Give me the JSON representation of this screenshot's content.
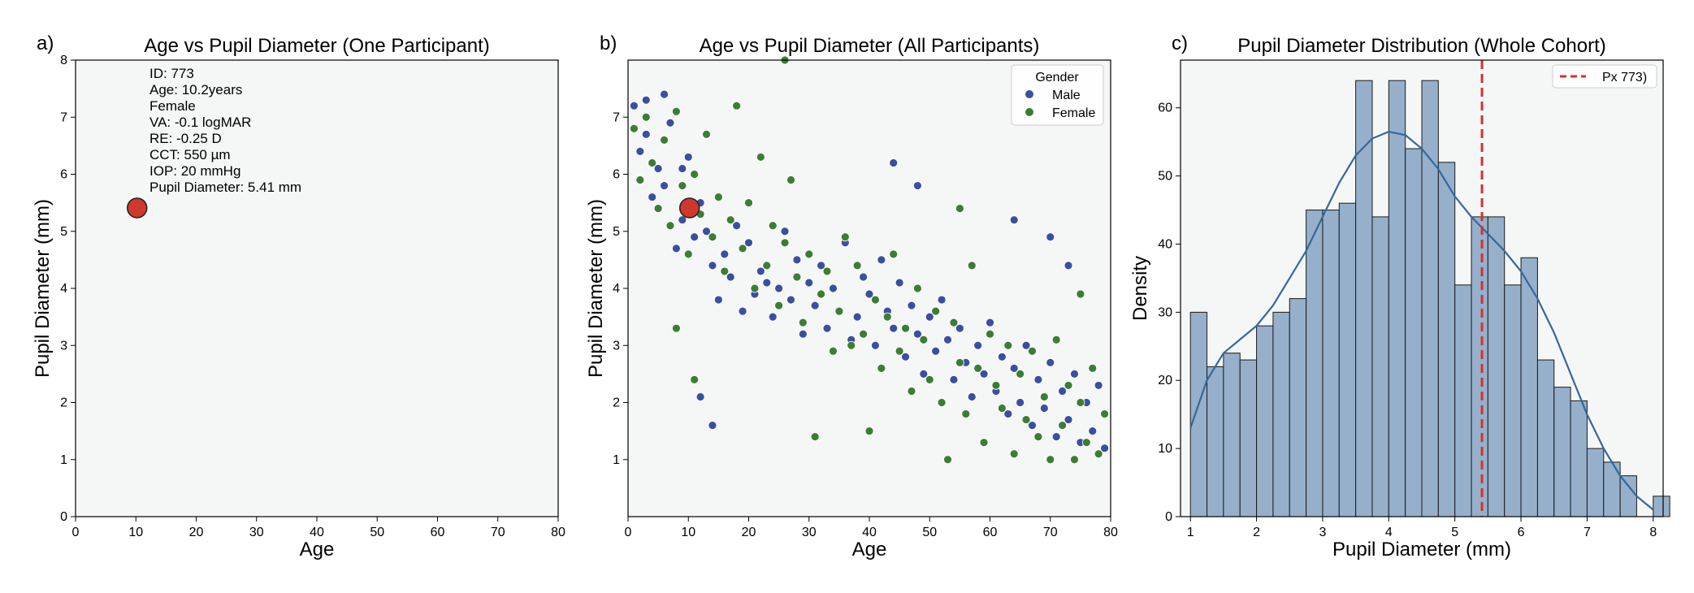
{
  "chart_data": [
    {
      "panel": "a)",
      "type": "scatter",
      "title": "Age vs Pupil Diameter (One Participant)",
      "xlabel": "Age",
      "ylabel": "Pupil Diameter (mm)",
      "xlim": [
        0,
        80
      ],
      "ylim": [
        0,
        8
      ],
      "xticks": [
        "0",
        "10",
        "20",
        "30",
        "40",
        "50",
        "60",
        "70",
        "80"
      ],
      "yticks": [
        "0",
        "1",
        "2",
        "3",
        "4",
        "5",
        "6",
        "7",
        "8"
      ],
      "points": [
        {
          "x": 10.2,
          "y": 5.41
        }
      ],
      "info_lines": [
        "ID: 773",
        "Age: 10.2years",
        "Female",
        "VA: -0.1 logMAR",
        "RE: -0.25 D",
        "CCT: 550 µm",
        "IOP: 20 mmHg",
        "Pupil Diameter:  5.41 mm"
      ],
      "colors": {
        "highlight": "#d0382b",
        "background": "#f5f7f7"
      }
    },
    {
      "panel": "b)",
      "type": "scatter",
      "title": "Age vs Pupil Diameter (All Participants)",
      "xlabel": "Age",
      "ylabel": "Pupil Diameter (mm)",
      "xlim": [
        0,
        80
      ],
      "ylim": [
        0,
        8
      ],
      "xticks": [
        "0",
        "10",
        "20",
        "30",
        "40",
        "50",
        "60",
        "70",
        "80"
      ],
      "yticks": [
        "1",
        "2",
        "3",
        "4",
        "5",
        "6",
        "7"
      ],
      "legend": {
        "title": "Gender",
        "position": "top-right",
        "entries": [
          "Male",
          "Female"
        ]
      },
      "highlight": {
        "x": 10.2,
        "y": 5.41
      },
      "series": [
        {
          "name": "Male",
          "color": "#3a4fa0",
          "points": [
            [
              1,
              7.2
            ],
            [
              2,
              6.4
            ],
            [
              3,
              6.7
            ],
            [
              4,
              5.6
            ],
            [
              5,
              6.1
            ],
            [
              6,
              5.8
            ],
            [
              7,
              6.9
            ],
            [
              8,
              4.7
            ],
            [
              9,
              5.2
            ],
            [
              10,
              6.3
            ],
            [
              11,
              4.9
            ],
            [
              12,
              5.5
            ],
            [
              13,
              5.0
            ],
            [
              14,
              4.4
            ],
            [
              15,
              3.8
            ],
            [
              16,
              4.6
            ],
            [
              17,
              4.2
            ],
            [
              18,
              5.1
            ],
            [
              19,
              3.6
            ],
            [
              20,
              4.8
            ],
            [
              21,
              3.9
            ],
            [
              22,
              4.3
            ],
            [
              23,
              4.1
            ],
            [
              24,
              3.5
            ],
            [
              25,
              4.0
            ],
            [
              26,
              5.0
            ],
            [
              27,
              3.8
            ],
            [
              28,
              4.5
            ],
            [
              29,
              3.2
            ],
            [
              30,
              4.1
            ],
            [
              31,
              3.7
            ],
            [
              32,
              4.4
            ],
            [
              33,
              3.3
            ],
            [
              34,
              4.0
            ],
            [
              35,
              3.6
            ],
            [
              36,
              4.8
            ],
            [
              37,
              3.1
            ],
            [
              38,
              3.5
            ],
            [
              39,
              4.2
            ],
            [
              40,
              3.9
            ],
            [
              41,
              3.0
            ],
            [
              42,
              4.5
            ],
            [
              43,
              3.6
            ],
            [
              44,
              3.3
            ],
            [
              45,
              4.1
            ],
            [
              46,
              2.8
            ],
            [
              47,
              3.7
            ],
            [
              48,
              3.2
            ],
            [
              49,
              2.5
            ],
            [
              50,
              3.5
            ],
            [
              51,
              2.9
            ],
            [
              52,
              3.8
            ],
            [
              53,
              3.1
            ],
            [
              54,
              2.4
            ],
            [
              55,
              3.3
            ],
            [
              56,
              2.7
            ],
            [
              57,
              2.1
            ],
            [
              58,
              3.0
            ],
            [
              59,
              2.5
            ],
            [
              60,
              3.4
            ],
            [
              61,
              2.2
            ],
            [
              62,
              2.8
            ],
            [
              63,
              1.8
            ],
            [
              64,
              2.6
            ],
            [
              65,
              2.0
            ],
            [
              66,
              3.0
            ],
            [
              67,
              1.6
            ],
            [
              68,
              2.4
            ],
            [
              69,
              1.9
            ],
            [
              70,
              2.7
            ],
            [
              71,
              1.4
            ],
            [
              72,
              2.2
            ],
            [
              73,
              1.7
            ],
            [
              74,
              2.5
            ],
            [
              75,
              1.3
            ],
            [
              76,
              2.0
            ],
            [
              77,
              1.5
            ],
            [
              78,
              2.3
            ],
            [
              79,
              1.2
            ],
            [
              3,
              7.3
            ],
            [
              6,
              7.4
            ],
            [
              9,
              6.1
            ],
            [
              12,
              2.1
            ],
            [
              14,
              1.6
            ],
            [
              44,
              6.2
            ],
            [
              48,
              5.8
            ],
            [
              64,
              5.2
            ],
            [
              70,
              4.9
            ],
            [
              73,
              4.4
            ]
          ]
        },
        {
          "name": "Female",
          "color": "#3c7d34",
          "points": [
            [
              1,
              6.8
            ],
            [
              2,
              5.9
            ],
            [
              3,
              7.0
            ],
            [
              4,
              6.2
            ],
            [
              5,
              5.4
            ],
            [
              6,
              6.6
            ],
            [
              7,
              5.1
            ],
            [
              8,
              7.1
            ],
            [
              9,
              5.8
            ],
            [
              10,
              4.6
            ],
            [
              11,
              6.0
            ],
            [
              12,
              5.3
            ],
            [
              13,
              6.7
            ],
            [
              14,
              4.9
            ],
            [
              15,
              5.6
            ],
            [
              16,
              4.3
            ],
            [
              17,
              5.2
            ],
            [
              18,
              7.2
            ],
            [
              19,
              4.7
            ],
            [
              20,
              5.5
            ],
            [
              21,
              4.0
            ],
            [
              22,
              6.3
            ],
            [
              23,
              4.4
            ],
            [
              24,
              5.1
            ],
            [
              25,
              3.7
            ],
            [
              26,
              4.8
            ],
            [
              27,
              5.9
            ],
            [
              28,
              4.2
            ],
            [
              29,
              3.4
            ],
            [
              30,
              4.6
            ],
            [
              31,
              1.4
            ],
            [
              32,
              3.9
            ],
            [
              33,
              4.3
            ],
            [
              34,
              2.9
            ],
            [
              35,
              3.6
            ],
            [
              36,
              4.9
            ],
            [
              37,
              3.0
            ],
            [
              38,
              4.4
            ],
            [
              39,
              3.2
            ],
            [
              40,
              1.5
            ],
            [
              41,
              3.8
            ],
            [
              42,
              2.6
            ],
            [
              43,
              3.5
            ],
            [
              44,
              4.6
            ],
            [
              45,
              2.9
            ],
            [
              46,
              3.3
            ],
            [
              47,
              2.2
            ],
            [
              48,
              4.0
            ],
            [
              49,
              3.1
            ],
            [
              50,
              2.4
            ],
            [
              51,
              3.6
            ],
            [
              52,
              2.0
            ],
            [
              53,
              1.0
            ],
            [
              54,
              3.4
            ],
            [
              55,
              2.7
            ],
            [
              56,
              1.8
            ],
            [
              57,
              4.4
            ],
            [
              58,
              2.6
            ],
            [
              59,
              1.3
            ],
            [
              60,
              3.2
            ],
            [
              61,
              2.3
            ],
            [
              62,
              1.9
            ],
            [
              63,
              3.0
            ],
            [
              64,
              1.1
            ],
            [
              65,
              2.5
            ],
            [
              66,
              1.7
            ],
            [
              67,
              2.9
            ],
            [
              68,
              1.4
            ],
            [
              69,
              2.1
            ],
            [
              70,
              1.0
            ],
            [
              71,
              3.1
            ],
            [
              72,
              1.6
            ],
            [
              73,
              2.3
            ],
            [
              74,
              1.0
            ],
            [
              75,
              2.0
            ],
            [
              76,
              1.3
            ],
            [
              77,
              2.6
            ],
            [
              78,
              1.1
            ],
            [
              79,
              1.8
            ],
            [
              26,
              8.0
            ],
            [
              11,
              2.4
            ],
            [
              55,
              5.4
            ],
            [
              8,
              3.3
            ],
            [
              75,
              3.9
            ]
          ]
        }
      ],
      "colors": {
        "highlight": "#d0382b",
        "background": "#f5f7f7"
      }
    },
    {
      "panel": "c)",
      "type": "bar",
      "title": "Pupil Diameter Distribution (Whole Cohort)",
      "xlabel": "Pupil Diameter (mm)",
      "ylabel": "Density",
      "xlim": [
        0.85,
        8.15
      ],
      "ylim": [
        0,
        67
      ],
      "xticks": [
        "1",
        "2",
        "3",
        "4",
        "5",
        "6",
        "7",
        "8"
      ],
      "yticks": [
        "0",
        "10",
        "20",
        "30",
        "40",
        "50",
        "60"
      ],
      "bin_start": 1.0,
      "bin_width": 0.25,
      "values": [
        30,
        22,
        24,
        23,
        28,
        30,
        32,
        45,
        45,
        46,
        64,
        44,
        64,
        54,
        64,
        52,
        34,
        44,
        44,
        34,
        38,
        23,
        19,
        17,
        10,
        8,
        6,
        0,
        3
      ],
      "kde": [
        [
          1.0,
          13
        ],
        [
          1.25,
          20
        ],
        [
          1.5,
          24
        ],
        [
          1.75,
          26
        ],
        [
          2.0,
          28
        ],
        [
          2.25,
          31
        ],
        [
          2.5,
          35
        ],
        [
          2.75,
          39
        ],
        [
          3.0,
          44
        ],
        [
          3.25,
          49
        ],
        [
          3.5,
          53
        ],
        [
          3.75,
          55.5
        ],
        [
          4.0,
          56.5
        ],
        [
          4.25,
          56
        ],
        [
          4.5,
          54
        ],
        [
          4.75,
          51
        ],
        [
          5.0,
          47
        ],
        [
          5.25,
          44
        ],
        [
          5.5,
          41.5
        ],
        [
          5.75,
          39
        ],
        [
          6.0,
          36
        ],
        [
          6.25,
          32
        ],
        [
          6.5,
          27
        ],
        [
          6.75,
          21
        ],
        [
          7.0,
          15
        ],
        [
          7.25,
          10
        ],
        [
          7.5,
          6
        ],
        [
          7.75,
          3
        ],
        [
          8.0,
          1
        ]
      ],
      "reference_line": {
        "x": 5.41,
        "label": "Px 773)"
      },
      "legend": {
        "position": "top-right",
        "entries": [
          "Px 773)"
        ]
      },
      "colors": {
        "bar": "#96b0cb",
        "kde": "#35679c",
        "reference": "#d6322a",
        "background": "#f5f7f7"
      }
    }
  ]
}
